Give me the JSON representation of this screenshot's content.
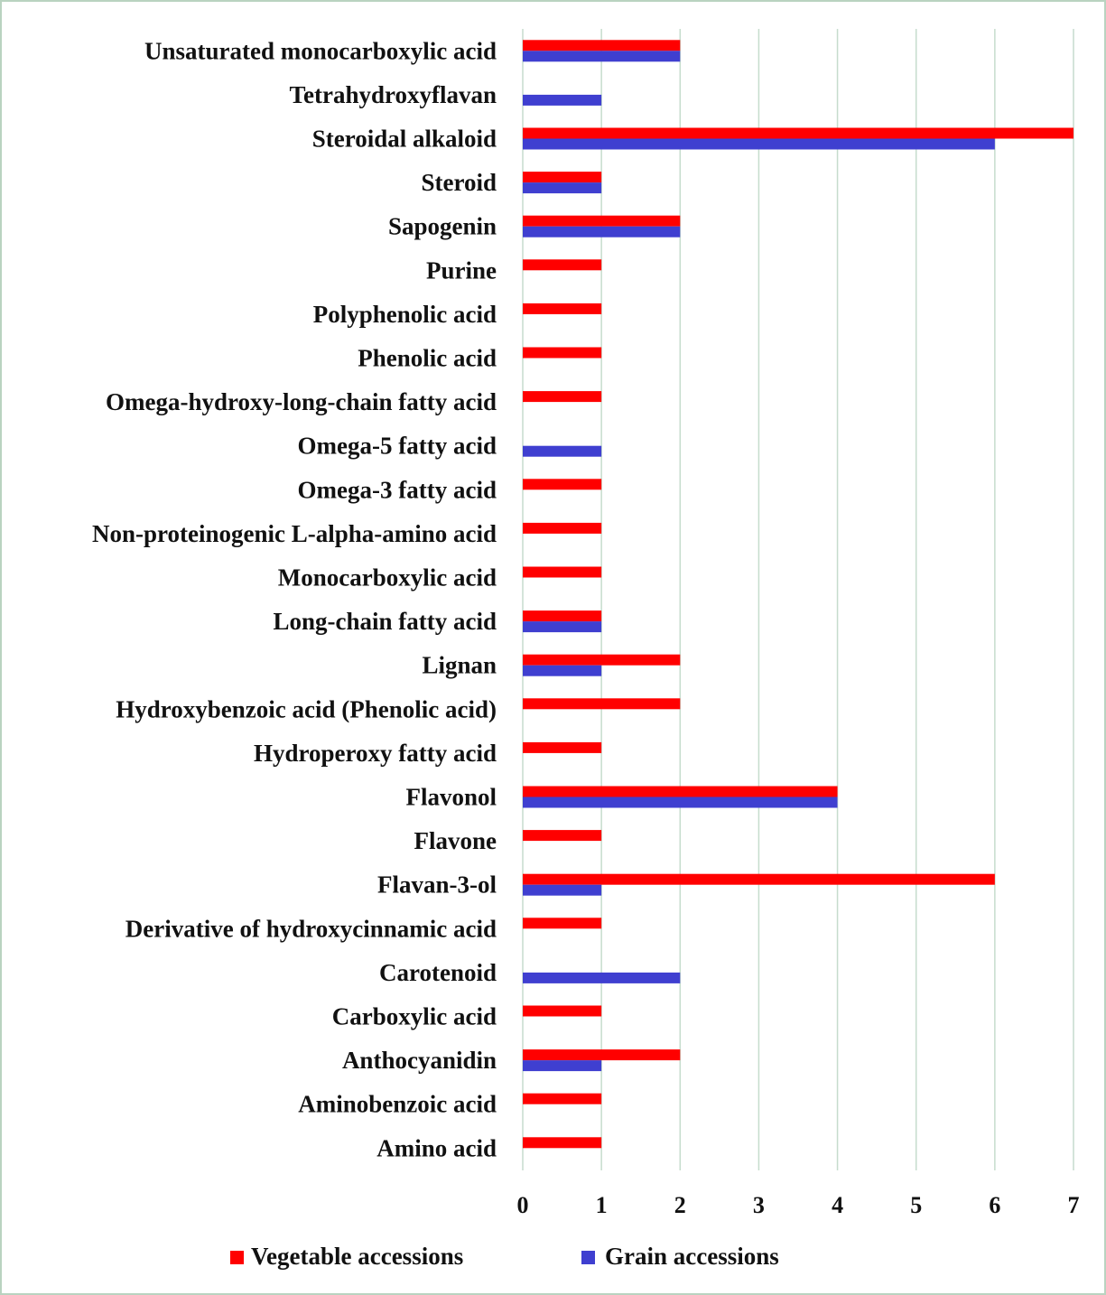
{
  "chart_data": {
    "type": "bar",
    "orientation": "horizontal",
    "categories": [
      "Unsaturated monocarboxylic acid",
      "Tetrahydroxyflavan",
      "Steroidal alkaloid",
      "Steroid",
      "Sapogenin",
      "Purine",
      "Polyphenolic acid",
      "Phenolic acid",
      "Omega-hydroxy-long-chain fatty acid",
      "Omega-5 fatty acid",
      "Omega-3 fatty acid",
      "Non-proteinogenic L-alpha-amino acid",
      "Monocarboxylic acid",
      "Long-chain fatty acid",
      "Lignan",
      "Hydroxybenzoic acid (Phenolic acid)",
      "Hydroperoxy fatty acid",
      "Flavonol",
      "Flavone",
      "Flavan-3-ol",
      "Derivative of hydroxycinnamic acid",
      "Carotenoid",
      "Carboxylic acid",
      "Anthocyanidin",
      "Aminobenzoic acid",
      "Amino acid"
    ],
    "series": [
      {
        "name": "Vegetable accessions",
        "color": "#ff0000",
        "values": [
          2,
          0,
          7,
          1,
          2,
          1,
          1,
          1,
          1,
          0,
          1,
          1,
          1,
          1,
          2,
          2,
          1,
          4,
          1,
          6,
          1,
          0,
          1,
          2,
          1,
          1
        ]
      },
      {
        "name": "Grain accessions",
        "color": "#3f3fd0",
        "values": [
          2,
          1,
          6,
          1,
          2,
          0,
          0,
          0,
          0,
          1,
          0,
          0,
          0,
          1,
          1,
          0,
          0,
          4,
          0,
          1,
          0,
          2,
          0,
          1,
          0,
          0
        ]
      }
    ],
    "xlim": [
      0,
      7
    ],
    "xticks": [
      "0",
      "1",
      "2",
      "3",
      "4",
      "5",
      "6",
      "7"
    ],
    "grid": true,
    "legend": "bottom",
    "title": "",
    "xlabel": "",
    "ylabel": ""
  }
}
